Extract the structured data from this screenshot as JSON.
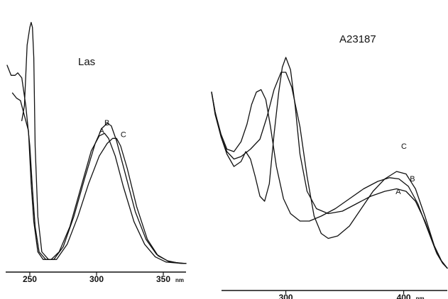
{
  "chart_data": [
    {
      "type": "line",
      "title": "Las",
      "xlabel": "",
      "ylabel": "",
      "x_unit": "nm",
      "xlim": [
        233,
        367
      ],
      "ylim": [
        0,
        1
      ],
      "x_ticks": [
        250,
        300,
        350
      ],
      "tick_labels": [
        "250",
        "300",
        "350"
      ],
      "grid": false,
      "series": [
        {
          "name": "A",
          "label_at": [
            307,
            0.54
          ],
          "points": [
            [
              237,
              0.71
            ],
            [
              240,
              0.69
            ],
            [
              243,
              0.68
            ],
            [
              246,
              0.62
            ],
            [
              249,
              0.56
            ],
            [
              251,
              0.35
            ],
            [
              253,
              0.2
            ],
            [
              256,
              0.08
            ],
            [
              260,
              0.05
            ],
            [
              266,
              0.05
            ],
            [
              272,
              0.08
            ],
            [
              280,
              0.18
            ],
            [
              288,
              0.33
            ],
            [
              296,
              0.48
            ],
            [
              302,
              0.54
            ],
            [
              306,
              0.55
            ],
            [
              309,
              0.53
            ],
            [
              314,
              0.46
            ],
            [
              320,
              0.34
            ],
            [
              328,
              0.2
            ],
            [
              336,
              0.11
            ],
            [
              344,
              0.06
            ],
            [
              352,
              0.04
            ],
            [
              362,
              0.035
            ],
            [
              367,
              0.034
            ]
          ]
        },
        {
          "name": "B",
          "label_at": [
            311,
            0.57
          ],
          "points": [
            [
              233,
              0.82
            ],
            [
              236,
              0.78
            ],
            [
              239,
              0.78
            ],
            [
              241,
              0.79
            ],
            [
              244,
              0.77
            ],
            [
              247,
              0.66
            ],
            [
              250,
              0.5
            ],
            [
              252,
              0.33
            ],
            [
              254,
              0.18
            ],
            [
              257,
              0.08
            ],
            [
              262,
              0.05
            ],
            [
              268,
              0.05
            ],
            [
              275,
              0.1
            ],
            [
              283,
              0.22
            ],
            [
              291,
              0.37
            ],
            [
              299,
              0.51
            ],
            [
              304,
              0.57
            ],
            [
              308,
              0.59
            ],
            [
              311,
              0.58
            ],
            [
              315,
              0.52
            ],
            [
              321,
              0.4
            ],
            [
              329,
              0.24
            ],
            [
              337,
              0.13
            ],
            [
              345,
              0.07
            ],
            [
              353,
              0.045
            ],
            [
              362,
              0.035
            ],
            [
              367,
              0.034
            ]
          ]
        },
        {
          "name": "C",
          "label_at": [
            318,
            0.53
          ],
          "points": [
            [
              244,
              0.6
            ],
            [
              246,
              0.66
            ],
            [
              248,
              0.9
            ],
            [
              250,
              0.97
            ],
            [
              251,
              0.99
            ],
            [
              252,
              0.97
            ],
            [
              253,
              0.85
            ],
            [
              254,
              0.5
            ],
            [
              256,
              0.22
            ],
            [
              259,
              0.08
            ],
            [
              264,
              0.05
            ],
            [
              270,
              0.05
            ],
            [
              278,
              0.11
            ],
            [
              286,
              0.22
            ],
            [
              294,
              0.35
            ],
            [
              302,
              0.46
            ],
            [
              308,
              0.51
            ],
            [
              312,
              0.53
            ],
            [
              315,
              0.53
            ],
            [
              318,
              0.5
            ],
            [
              323,
              0.41
            ],
            [
              330,
              0.26
            ],
            [
              338,
              0.13
            ],
            [
              346,
              0.065
            ],
            [
              355,
              0.04
            ],
            [
              367,
              0.034
            ]
          ]
        }
      ]
    },
    {
      "type": "line",
      "title": "A23187",
      "xlabel": "",
      "ylabel": "",
      "x_unit": "nm",
      "xlim": [
        237,
        437
      ],
      "ylim": [
        0,
        1
      ],
      "x_ticks": [
        300,
        400
      ],
      "tick_labels": [
        "300",
        "400"
      ],
      "grid": false,
      "series": [
        {
          "name": "A",
          "label_at": [
            399,
            0.4
          ],
          "points": [
            [
              237,
              0.8
            ],
            [
              240,
              0.71
            ],
            [
              245,
              0.62
            ],
            [
              250,
              0.55
            ],
            [
              256,
              0.5
            ],
            [
              262,
              0.52
            ],
            [
              266,
              0.56
            ],
            [
              270,
              0.53
            ],
            [
              274,
              0.46
            ],
            [
              278,
              0.38
            ],
            [
              282,
              0.36
            ],
            [
              286,
              0.43
            ],
            [
              290,
              0.63
            ],
            [
              294,
              0.8
            ],
            [
              297,
              0.9
            ],
            [
              300,
              0.94
            ],
            [
              304,
              0.89
            ],
            [
              308,
              0.74
            ],
            [
              312,
              0.55
            ],
            [
              318,
              0.4
            ],
            [
              326,
              0.33
            ],
            [
              336,
              0.31
            ],
            [
              348,
              0.32
            ],
            [
              360,
              0.35
            ],
            [
              372,
              0.38
            ],
            [
              384,
              0.4
            ],
            [
              394,
              0.41
            ],
            [
              402,
              0.4
            ],
            [
              410,
              0.36
            ],
            [
              418,
              0.28
            ],
            [
              426,
              0.18
            ],
            [
              432,
              0.12
            ],
            [
              437,
              0.09
            ]
          ]
        },
        {
          "name": "B",
          "label_at": [
            405,
            0.44
          ],
          "points": [
            [
              237,
              0.8
            ],
            [
              240,
              0.72
            ],
            [
              245,
              0.63
            ],
            [
              250,
              0.57
            ],
            [
              256,
              0.56
            ],
            [
              262,
              0.6
            ],
            [
              267,
              0.67
            ],
            [
              271,
              0.75
            ],
            [
              275,
              0.8
            ],
            [
              279,
              0.81
            ],
            [
              283,
              0.77
            ],
            [
              287,
              0.66
            ],
            [
              292,
              0.5
            ],
            [
              298,
              0.37
            ],
            [
              304,
              0.31
            ],
            [
              312,
              0.28
            ],
            [
              320,
              0.28
            ],
            [
              330,
              0.3
            ],
            [
              342,
              0.33
            ],
            [
              354,
              0.37
            ],
            [
              366,
              0.41
            ],
            [
              378,
              0.44
            ],
            [
              388,
              0.455
            ],
            [
              396,
              0.45
            ],
            [
              404,
              0.42
            ],
            [
              412,
              0.35
            ],
            [
              420,
              0.25
            ],
            [
              428,
              0.15
            ],
            [
              433,
              0.11
            ],
            [
              437,
              0.09
            ]
          ]
        },
        {
          "name": "C",
          "label_at": [
            399,
            0.56
          ],
          "points": [
            [
              237,
              0.8
            ],
            [
              240,
              0.72
            ],
            [
              245,
              0.62
            ],
            [
              250,
              0.56
            ],
            [
              256,
              0.53
            ],
            [
              262,
              0.54
            ],
            [
              270,
              0.57
            ],
            [
              278,
              0.61
            ],
            [
              284,
              0.7
            ],
            [
              290,
              0.81
            ],
            [
              296,
              0.88
            ],
            [
              300,
              0.88
            ],
            [
              305,
              0.82
            ],
            [
              312,
              0.66
            ],
            [
              318,
              0.46
            ],
            [
              324,
              0.3
            ],
            [
              330,
              0.23
            ],
            [
              336,
              0.21
            ],
            [
              344,
              0.22
            ],
            [
              354,
              0.26
            ],
            [
              364,
              0.33
            ],
            [
              374,
              0.4
            ],
            [
              384,
              0.45
            ],
            [
              394,
              0.48
            ],
            [
              402,
              0.47
            ],
            [
              410,
              0.41
            ],
            [
              418,
              0.3
            ],
            [
              426,
              0.18
            ],
            [
              432,
              0.12
            ],
            [
              437,
              0.09
            ]
          ]
        }
      ]
    }
  ]
}
